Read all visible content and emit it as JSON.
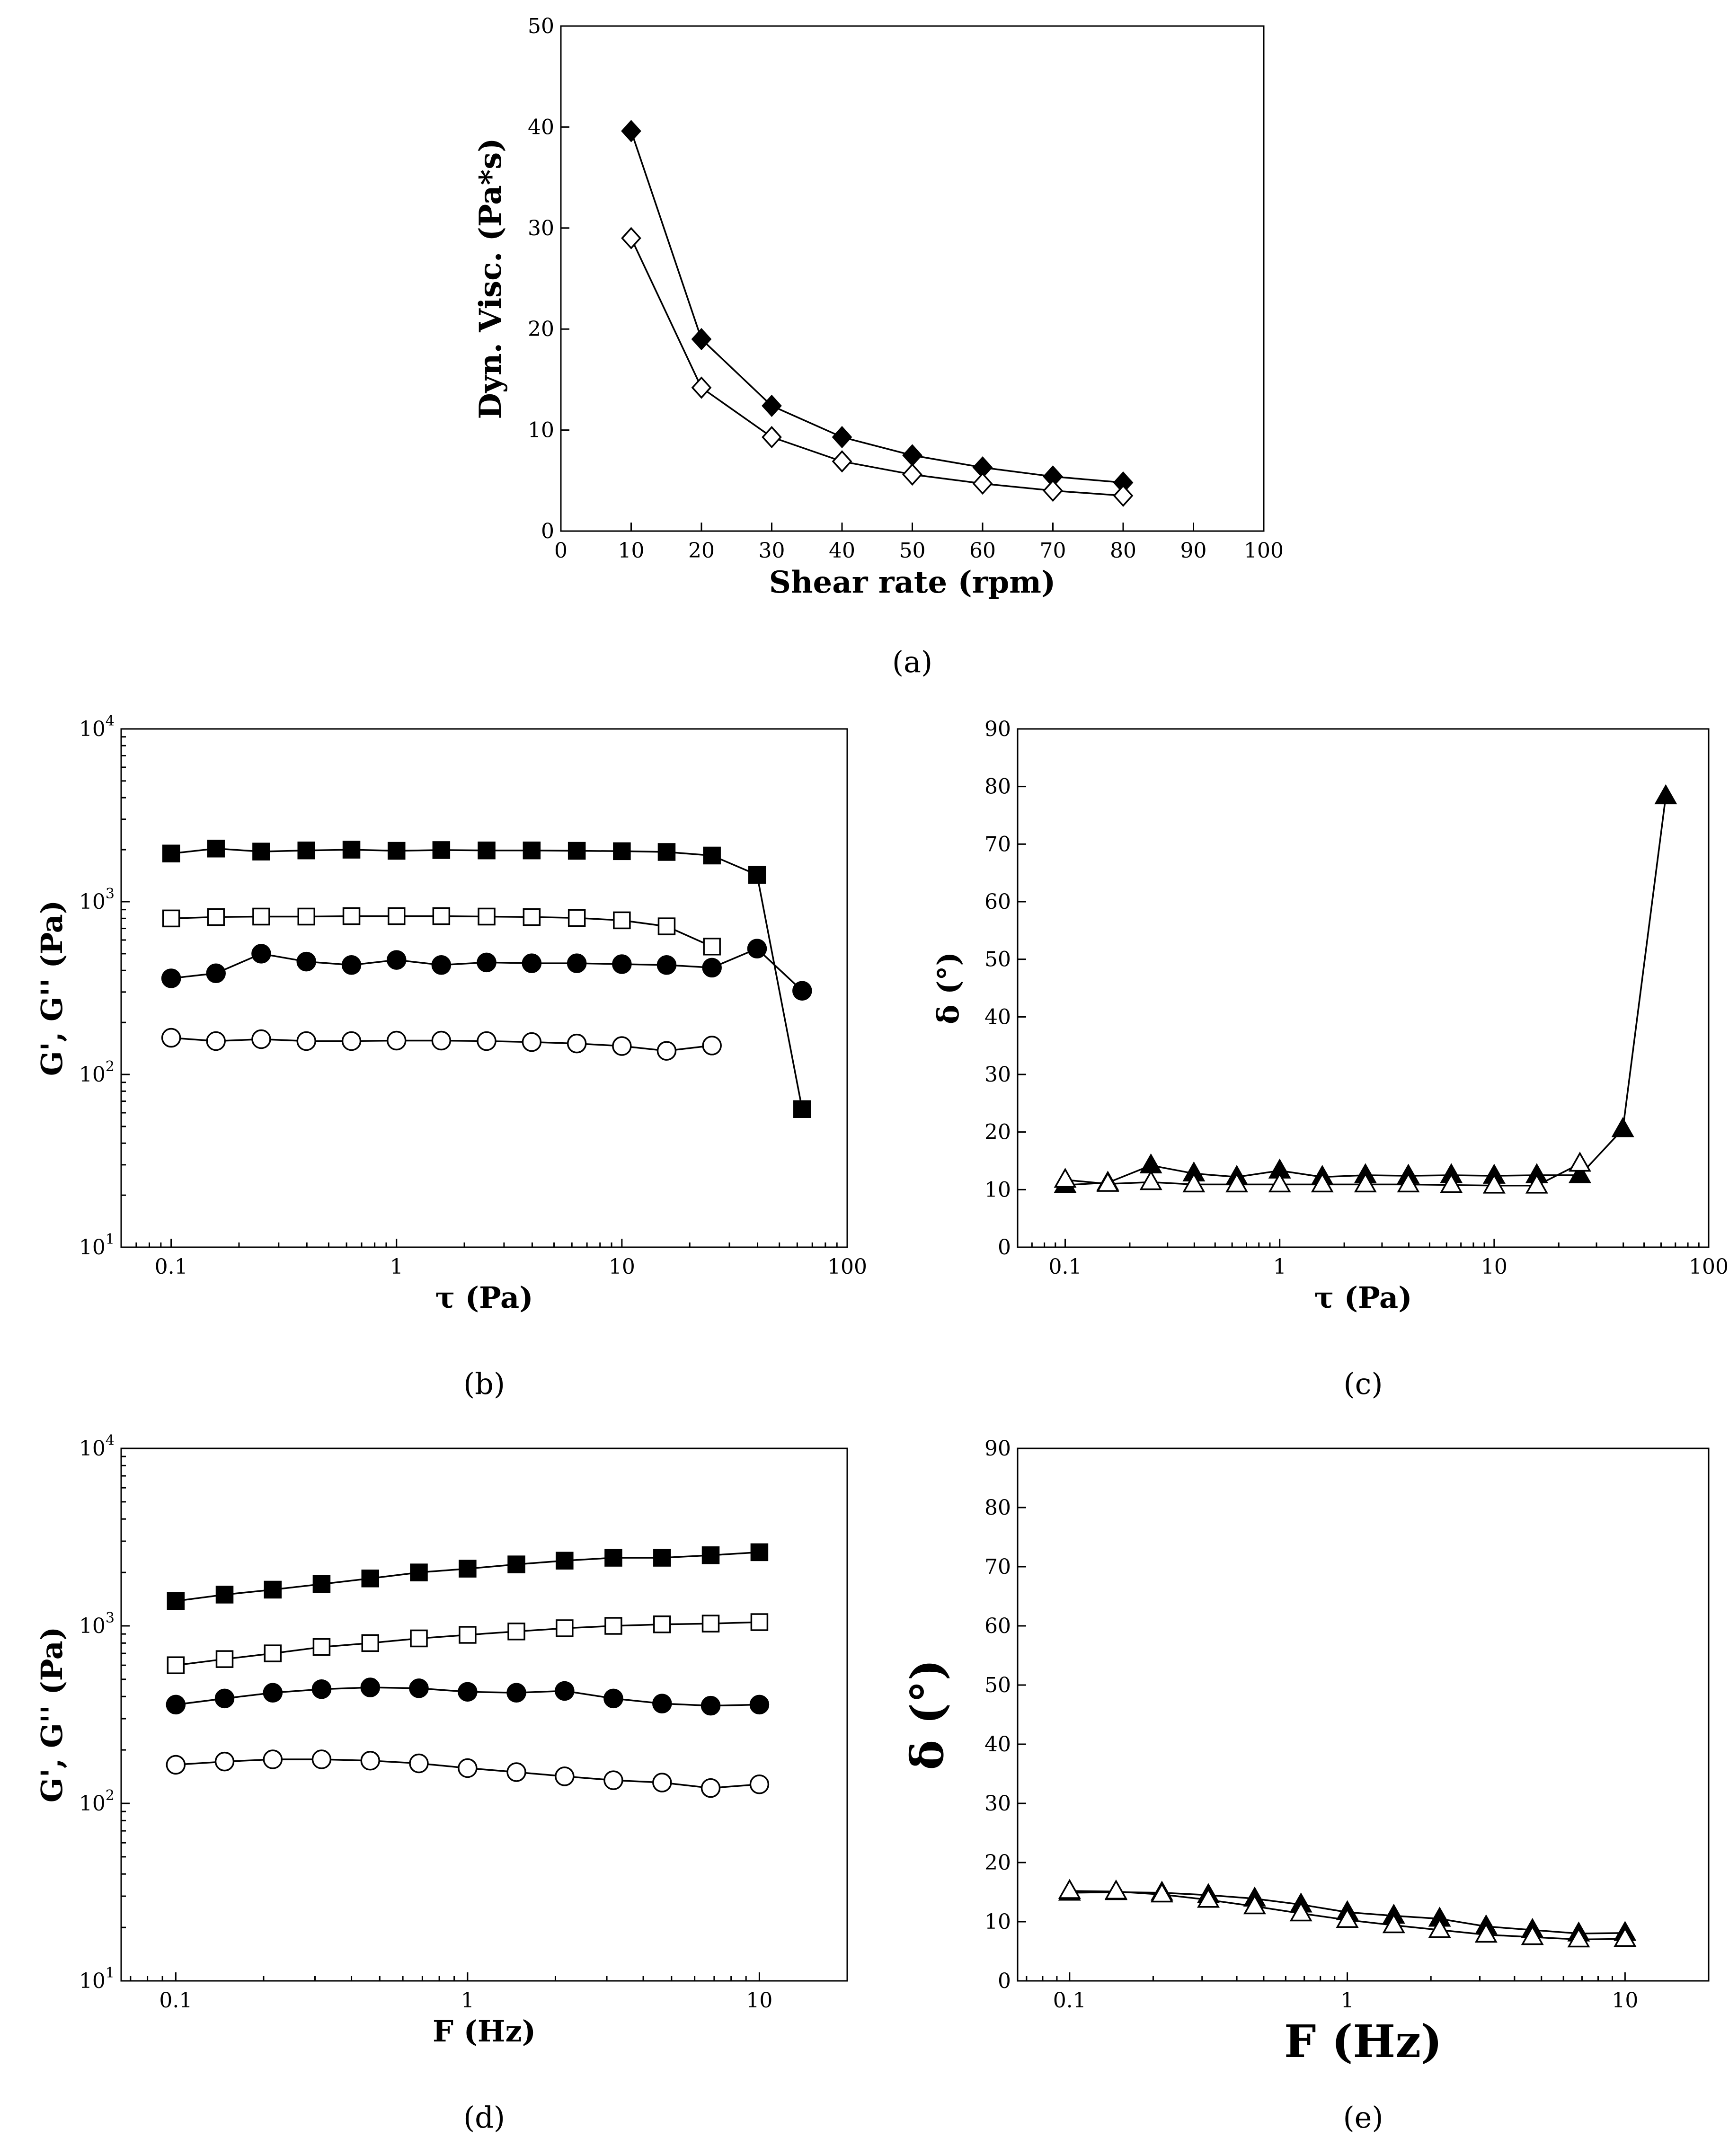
{
  "chart_data": [
    {
      "id": "a",
      "panel_label": "(a)",
      "type": "line",
      "xlabel": "Shear rate (rpm)",
      "ylabel": "Dyn. Visc. (Pa*s)",
      "xscale": "linear",
      "yscale": "linear",
      "xlim": [
        0,
        100
      ],
      "ylim": [
        0,
        50
      ],
      "xticks": [
        0,
        10,
        20,
        30,
        40,
        50,
        60,
        70,
        80,
        90,
        100
      ],
      "xtick_labels": [
        "0",
        "10",
        "20",
        "30",
        "40",
        "50",
        "60",
        "70",
        "80",
        "90",
        "100"
      ],
      "yticks": [
        0,
        10,
        20,
        30,
        40,
        50
      ],
      "ytick_labels": [
        "0",
        "10",
        "20",
        "30",
        "40",
        "50"
      ],
      "series": [
        {
          "name": "filled diamonds",
          "marker": "diamond",
          "fill": "#000000",
          "x": [
            10,
            20,
            30,
            40,
            50,
            60,
            70,
            80
          ],
          "y": [
            39.6,
            19.0,
            12.4,
            9.3,
            7.5,
            6.3,
            5.4,
            4.8
          ]
        },
        {
          "name": "open diamonds",
          "marker": "diamond",
          "fill": "#ffffff",
          "x": [
            10,
            20,
            30,
            40,
            50,
            60,
            70,
            80
          ],
          "y": [
            29.0,
            14.2,
            9.3,
            6.9,
            5.6,
            4.7,
            4.0,
            3.5
          ]
        }
      ]
    },
    {
      "id": "b",
      "panel_label": "(b)",
      "type": "line",
      "xlabel": "τ (Pa)",
      "ylabel": "G', G'' (Pa)",
      "xscale": "log",
      "yscale": "log",
      "xlim": [
        0.06,
        100
      ],
      "ylim": [
        10,
        10000
      ],
      "xticks": [
        0.1,
        1,
        10,
        100
      ],
      "xtick_labels": [
        "0.1",
        "1",
        "10",
        "100"
      ],
      "yticks": [
        10,
        100,
        1000,
        10000
      ],
      "ytick_labels": [
        [
          "10",
          "1"
        ],
        [
          "10",
          "2"
        ],
        [
          "10",
          "3"
        ],
        [
          "10",
          "4"
        ]
      ],
      "series": [
        {
          "name": "G' (filled squares)",
          "marker": "square",
          "fill": "#000000",
          "x": [
            0.1,
            0.158,
            0.251,
            0.398,
            0.631,
            1.0,
            1.58,
            2.51,
            3.98,
            6.31,
            10,
            15.8,
            25.1,
            39.8,
            63.1
          ],
          "y": [
            1900,
            2030,
            1950,
            1980,
            2000,
            1970,
            1990,
            1980,
            1980,
            1970,
            1960,
            1940,
            1850,
            1430,
            63
          ]
        },
        {
          "name": "G' (open squares)",
          "marker": "square",
          "fill": "#ffffff",
          "x": [
            0.1,
            0.158,
            0.251,
            0.398,
            0.631,
            1.0,
            1.58,
            2.51,
            3.98,
            6.31,
            10,
            15.8,
            25.1
          ],
          "y": [
            800,
            815,
            820,
            820,
            825,
            825,
            825,
            820,
            815,
            805,
            780,
            720,
            550
          ]
        },
        {
          "name": "G'' (filled circles)",
          "marker": "circle",
          "fill": "#000000",
          "x": [
            0.1,
            0.158,
            0.251,
            0.398,
            0.631,
            1.0,
            1.58,
            2.51,
            3.98,
            6.31,
            10,
            15.8,
            25.1,
            39.8,
            63.1
          ],
          "y": [
            360,
            385,
            500,
            450,
            430,
            460,
            430,
            445,
            440,
            440,
            435,
            430,
            415,
            535,
            305
          ]
        },
        {
          "name": "G'' (open circles)",
          "marker": "circle",
          "fill": "#ffffff",
          "x": [
            0.1,
            0.158,
            0.251,
            0.398,
            0.631,
            1.0,
            1.58,
            2.51,
            3.98,
            6.31,
            10,
            15.8,
            25.1
          ],
          "y": [
            163,
            156,
            160,
            156,
            156,
            157,
            157,
            156,
            154,
            151,
            146,
            137,
            147
          ]
        }
      ]
    },
    {
      "id": "c",
      "panel_label": "(c)",
      "type": "line",
      "xlabel": "τ (Pa)",
      "ylabel": "δ (°)",
      "xscale": "log",
      "yscale": "linear",
      "xlim": [
        0.06,
        100
      ],
      "ylim": [
        0,
        90
      ],
      "xticks": [
        0.1,
        1,
        10,
        100
      ],
      "xtick_labels": [
        "0.1",
        "1",
        "10",
        "100"
      ],
      "yticks": [
        0,
        10,
        20,
        30,
        40,
        50,
        60,
        70,
        80,
        90
      ],
      "ytick_labels": [
        "0",
        "10",
        "20",
        "30",
        "40",
        "50",
        "60",
        "70",
        "80",
        "90"
      ],
      "series": [
        {
          "name": "filled triangles",
          "marker": "triangle",
          "fill": "#000000",
          "x": [
            0.1,
            0.158,
            0.251,
            0.398,
            0.631,
            1.0,
            1.58,
            2.51,
            3.98,
            6.31,
            10,
            15.8,
            25.1,
            39.8,
            63.1
          ],
          "y": [
            10.8,
            11.2,
            14.2,
            12.8,
            12.2,
            13.3,
            12.2,
            12.5,
            12.4,
            12.5,
            12.4,
            12.5,
            12.5,
            20.5,
            78.3
          ]
        },
        {
          "name": "open triangles",
          "marker": "triangle",
          "fill": "#ffffff",
          "x": [
            0.1,
            0.158,
            0.251,
            0.398,
            0.631,
            1.0,
            1.58,
            2.51,
            3.98,
            6.31,
            10,
            15.8,
            25.1
          ],
          "y": [
            11.7,
            11.0,
            11.3,
            10.9,
            10.9,
            10.9,
            10.9,
            10.9,
            10.9,
            10.8,
            10.7,
            10.7,
            14.5
          ]
        }
      ]
    },
    {
      "id": "d",
      "panel_label": "(d)",
      "type": "line",
      "xlabel": "F (Hz)",
      "ylabel": "G', G'' (Pa)",
      "xscale": "log",
      "yscale": "log",
      "xlim": [
        0.065,
        20
      ],
      "ylim": [
        10,
        10000
      ],
      "xticks": [
        0.1,
        1,
        10
      ],
      "xtick_labels": [
        "0.1",
        "1",
        "10"
      ],
      "yticks": [
        10,
        100,
        1000,
        10000
      ],
      "ytick_labels": [
        [
          "10",
          "1"
        ],
        [
          "10",
          "2"
        ],
        [
          "10",
          "3"
        ],
        [
          "10",
          "4"
        ]
      ],
      "series": [
        {
          "name": "G' (filled squares)",
          "marker": "square",
          "fill": "#000000",
          "x": [
            0.1,
            0.147,
            0.215,
            0.316,
            0.464,
            0.681,
            1.0,
            1.47,
            2.15,
            3.16,
            4.64,
            6.81,
            10
          ],
          "y": [
            1380,
            1500,
            1600,
            1720,
            1850,
            2000,
            2100,
            2220,
            2330,
            2420,
            2420,
            2500,
            2600
          ]
        },
        {
          "name": "G' (open squares)",
          "marker": "square",
          "fill": "#ffffff",
          "x": [
            0.1,
            0.147,
            0.215,
            0.316,
            0.464,
            0.681,
            1.0,
            1.47,
            2.15,
            3.16,
            4.64,
            6.81,
            10
          ],
          "y": [
            600,
            650,
            700,
            760,
            800,
            850,
            890,
            930,
            970,
            1000,
            1020,
            1030,
            1050
          ]
        },
        {
          "name": "G'' (filled circles)",
          "marker": "circle",
          "fill": "#000000",
          "x": [
            0.1,
            0.147,
            0.215,
            0.316,
            0.464,
            0.681,
            1.0,
            1.47,
            2.15,
            3.16,
            4.64,
            6.81,
            10
          ],
          "y": [
            360,
            390,
            420,
            440,
            450,
            445,
            425,
            420,
            430,
            390,
            365,
            355,
            360
          ]
        },
        {
          "name": "G'' (open circles)",
          "marker": "circle",
          "fill": "#ffffff",
          "x": [
            0.1,
            0.147,
            0.215,
            0.316,
            0.464,
            0.681,
            1.0,
            1.47,
            2.15,
            3.16,
            4.64,
            6.81,
            10
          ],
          "y": [
            165,
            172,
            177,
            177,
            174,
            168,
            158,
            150,
            142,
            135,
            131,
            122,
            128
          ]
        }
      ]
    },
    {
      "id": "e",
      "panel_label": "(e)",
      "type": "line",
      "xlabel": "F (Hz)",
      "ylabel": "δ (°)",
      "xscale": "log",
      "yscale": "linear",
      "xlim": [
        0.065,
        20
      ],
      "ylim": [
        0,
        90
      ],
      "xticks": [
        0.1,
        1,
        10
      ],
      "xtick_labels": [
        "0.1",
        "1",
        "10"
      ],
      "yticks": [
        0,
        10,
        20,
        30,
        40,
        50,
        60,
        70,
        80,
        90
      ],
      "ytick_labels": [
        "0",
        "10",
        "20",
        "30",
        "40",
        "50",
        "60",
        "70",
        "80",
        "90"
      ],
      "series": [
        {
          "name": "filled triangles",
          "marker": "triangle",
          "fill": "#000000",
          "x": [
            0.1,
            0.147,
            0.215,
            0.316,
            0.464,
            0.681,
            1.0,
            1.47,
            2.15,
            3.16,
            4.64,
            6.81,
            10
          ],
          "y": [
            14.9,
            15.0,
            14.9,
            14.5,
            13.9,
            12.9,
            11.6,
            11.0,
            10.5,
            9.2,
            8.6,
            8.0,
            8.1
          ]
        },
        {
          "name": "open triangles",
          "marker": "triangle",
          "fill": "#ffffff",
          "x": [
            0.1,
            0.147,
            0.215,
            0.316,
            0.464,
            0.681,
            1.0,
            1.47,
            2.15,
            3.16,
            4.64,
            6.81,
            10
          ],
          "y": [
            15.2,
            15.1,
            14.6,
            13.7,
            12.6,
            11.4,
            10.3,
            9.4,
            8.6,
            7.8,
            7.4,
            7.0,
            7.1
          ]
        }
      ]
    }
  ]
}
